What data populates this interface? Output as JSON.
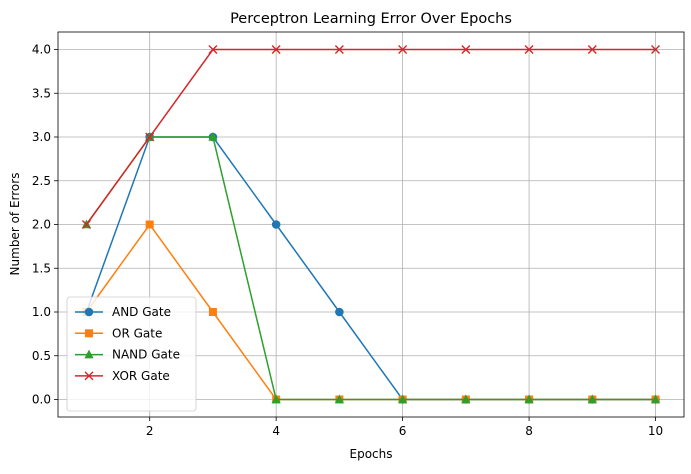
{
  "chart_data": {
    "type": "line",
    "title": "Perceptron Learning Error Over Epochs",
    "xlabel": "Epochs",
    "ylabel": "Number of Errors",
    "x": [
      1,
      2,
      3,
      4,
      5,
      6,
      7,
      8,
      9,
      10
    ],
    "xlim": [
      0.55,
      10.45
    ],
    "ylim": [
      -0.2,
      4.2
    ],
    "xticks": [
      2,
      4,
      6,
      8,
      10
    ],
    "xtick_labels": [
      "2",
      "4",
      "6",
      "8",
      "10"
    ],
    "yticks": [
      0,
      0.5,
      1,
      1.5,
      2,
      2.5,
      3,
      3.5,
      4
    ],
    "ytick_labels": [
      "0.0",
      "0.5",
      "1.0",
      "1.5",
      "2.0",
      "2.5",
      "3.0",
      "3.5",
      "4.0"
    ],
    "grid": true,
    "legend_position": "lower-left",
    "series": [
      {
        "name": "AND Gate",
        "color": "#1f77b4",
        "marker": "circle",
        "values": [
          1,
          3,
          3,
          2,
          1,
          0,
          0,
          0,
          0,
          0
        ]
      },
      {
        "name": "OR Gate",
        "color": "#ff7f0e",
        "marker": "square",
        "values": [
          1,
          2,
          1,
          0,
          0,
          0,
          0,
          0,
          0,
          0
        ]
      },
      {
        "name": "NAND Gate",
        "color": "#2ca02c",
        "marker": "triangle",
        "values": [
          2,
          3,
          3,
          0,
          0,
          0,
          0,
          0,
          0,
          0
        ]
      },
      {
        "name": "XOR Gate",
        "color": "#d62728",
        "marker": "x",
        "values": [
          2,
          3,
          4,
          4,
          4,
          4,
          4,
          4,
          4,
          4
        ]
      }
    ]
  }
}
